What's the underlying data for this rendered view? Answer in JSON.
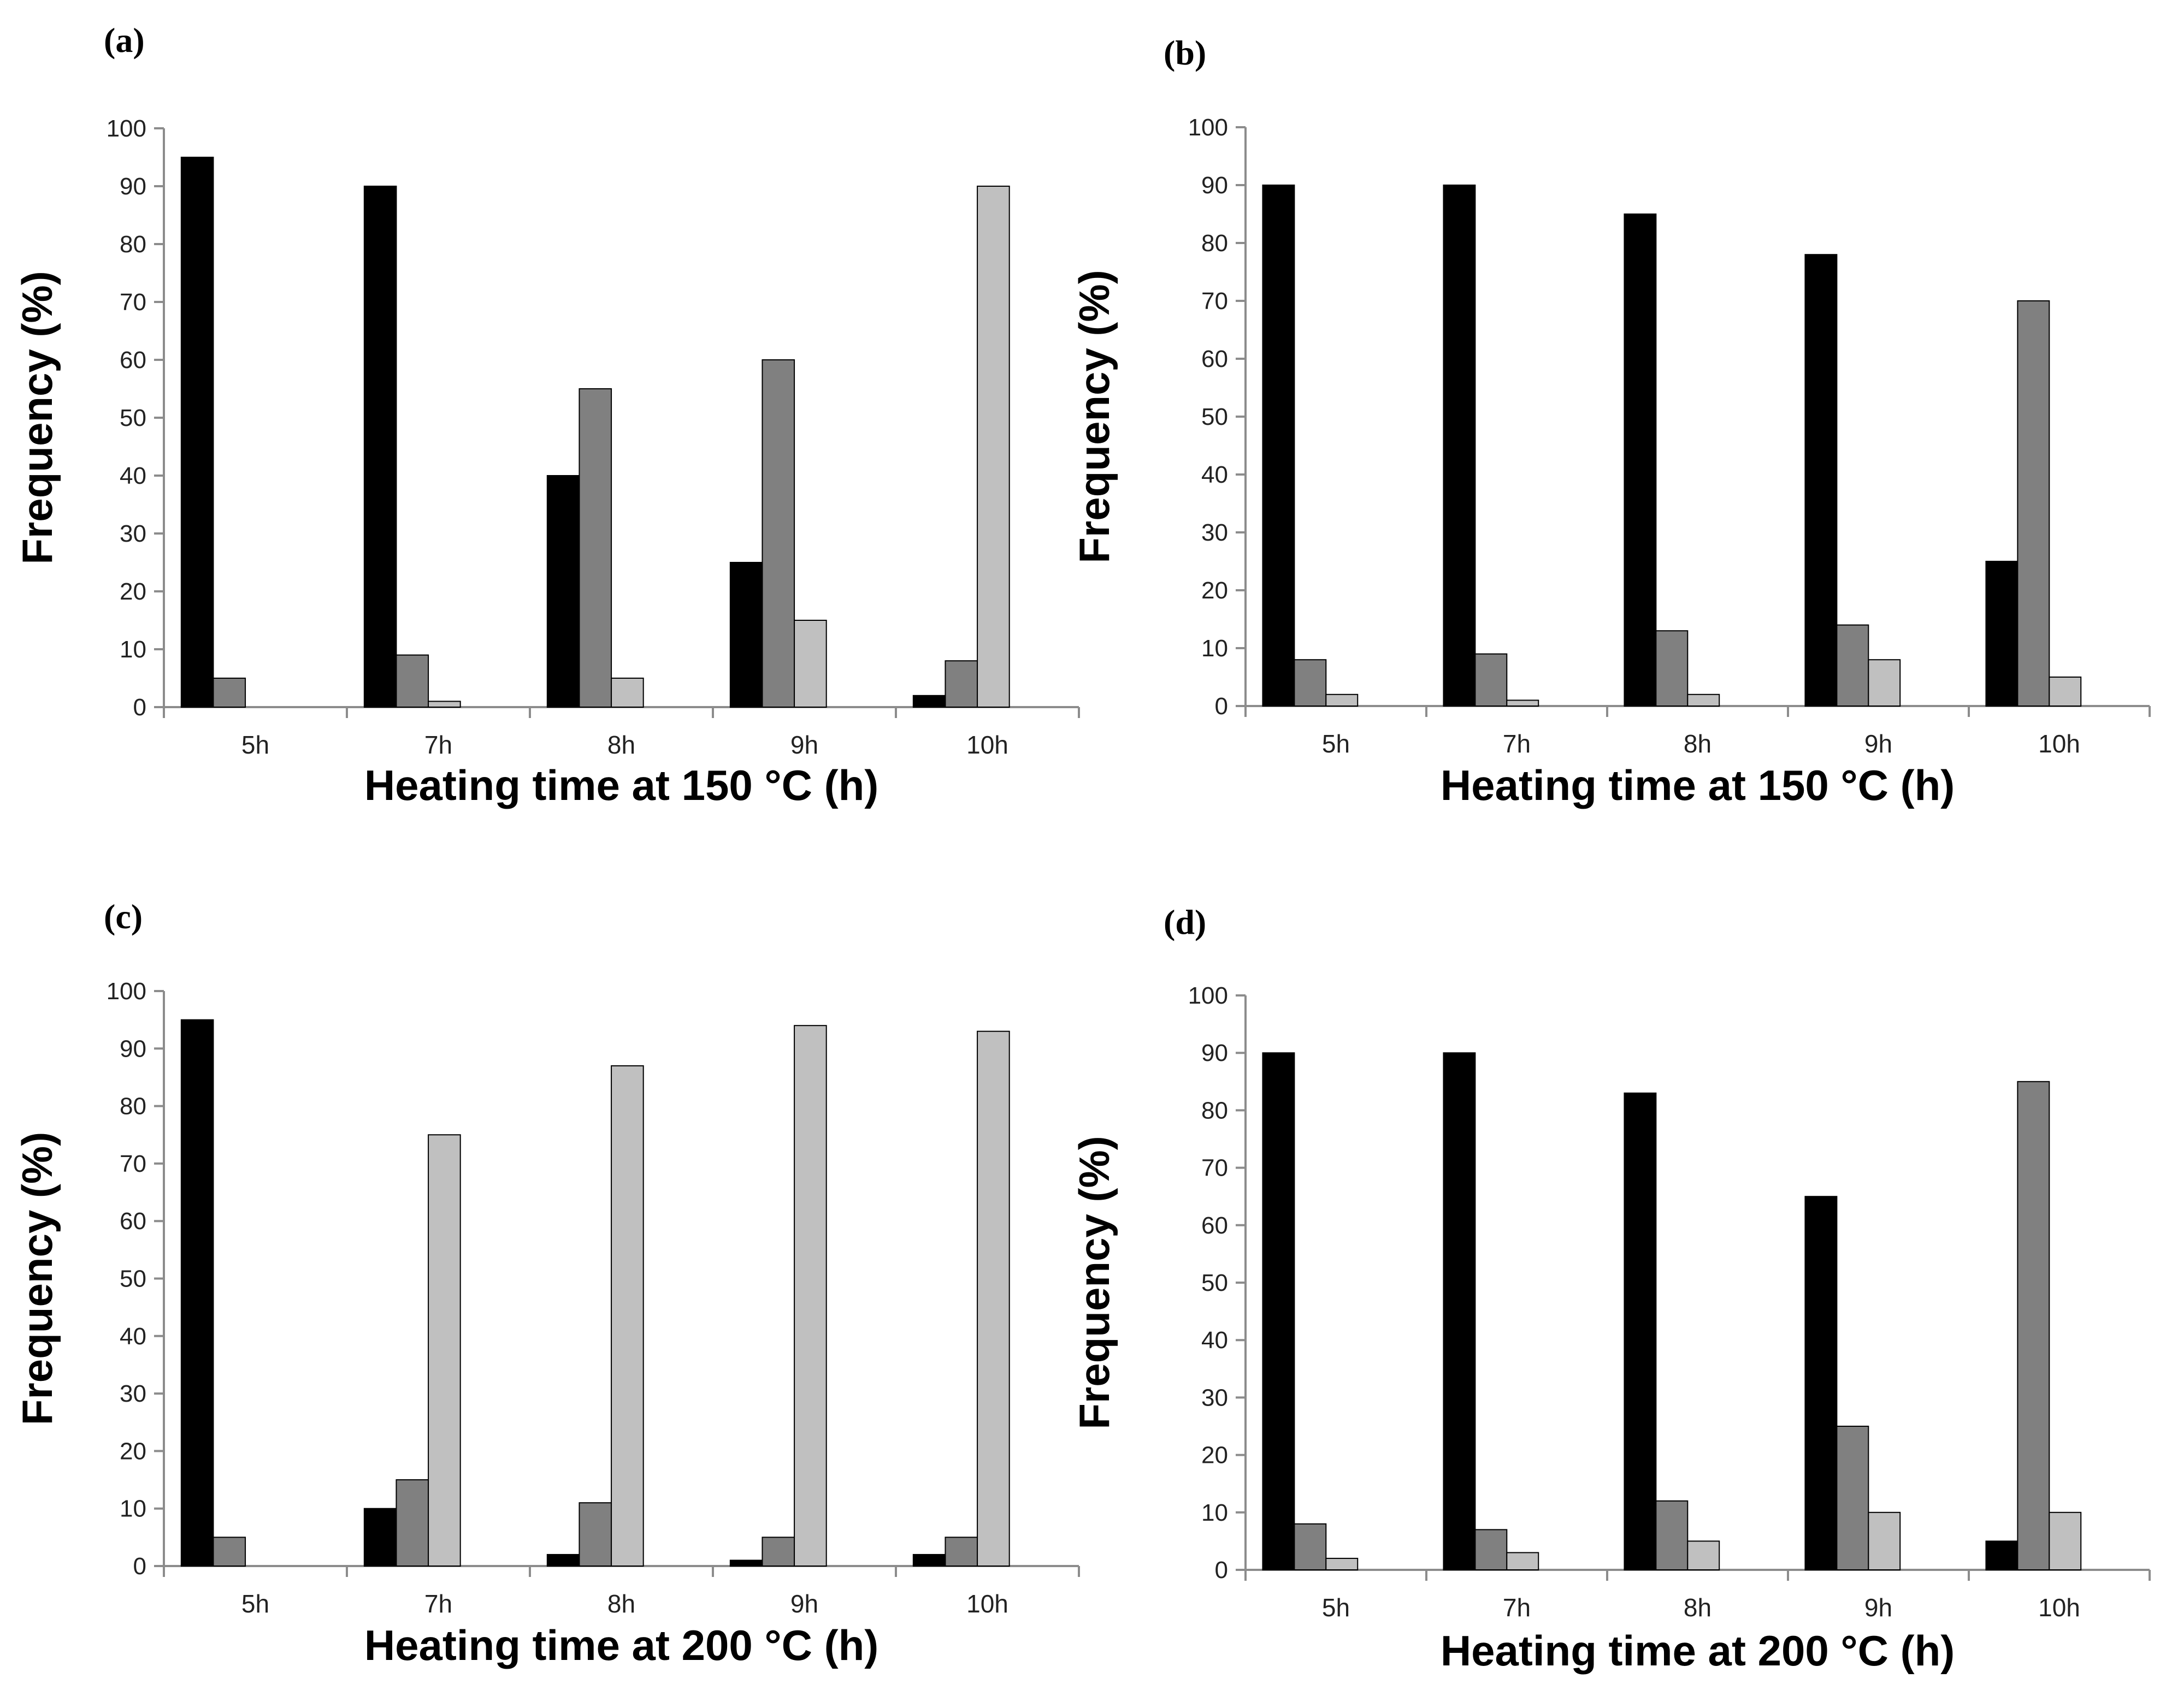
{
  "chart_data": [
    {
      "panel": "(a)",
      "type": "bar",
      "categories": [
        "5h",
        "7h",
        "8h",
        "9h",
        "10h"
      ],
      "series": [
        {
          "name": "series-1",
          "color": "#000000",
          "values": [
            95,
            90,
            40,
            25,
            2
          ]
        },
        {
          "name": "series-2",
          "color": "#808080",
          "values": [
            5,
            9,
            55,
            60,
            8
          ]
        },
        {
          "name": "series-3",
          "color": "#c0c0c0",
          "values": [
            0,
            1,
            5,
            15,
            90
          ]
        }
      ],
      "xlabel": "Heating time at 150 °C (h)",
      "ylabel": "Frequency (%)",
      "ylim": [
        0,
        100
      ],
      "yticks": [
        0,
        10,
        20,
        30,
        40,
        50,
        60,
        70,
        80,
        90,
        100
      ],
      "grid": false,
      "legend": "none"
    },
    {
      "panel": "(b)",
      "type": "bar",
      "categories": [
        "5h",
        "7h",
        "8h",
        "9h",
        "10h"
      ],
      "series": [
        {
          "name": "series-1",
          "color": "#000000",
          "values": [
            90,
            90,
            85,
            78,
            25
          ]
        },
        {
          "name": "series-2",
          "color": "#808080",
          "values": [
            8,
            9,
            13,
            14,
            70
          ]
        },
        {
          "name": "series-3",
          "color": "#c0c0c0",
          "values": [
            2,
            1,
            2,
            8,
            5
          ]
        }
      ],
      "xlabel": "Heating time at 150 °C (h)",
      "ylabel": "Frequency (%)",
      "ylim": [
        0,
        100
      ],
      "yticks": [
        0,
        10,
        20,
        30,
        40,
        50,
        60,
        70,
        80,
        90,
        100
      ],
      "grid": false,
      "legend": "none"
    },
    {
      "panel": "(c)",
      "type": "bar",
      "categories": [
        "5h",
        "7h",
        "8h",
        "9h",
        "10h"
      ],
      "series": [
        {
          "name": "series-1",
          "color": "#000000",
          "values": [
            95,
            10,
            2,
            1,
            2
          ]
        },
        {
          "name": "series-2",
          "color": "#808080",
          "values": [
            5,
            15,
            11,
            5,
            5
          ]
        },
        {
          "name": "series-3",
          "color": "#c0c0c0",
          "values": [
            0,
            75,
            87,
            94,
            93
          ]
        }
      ],
      "xlabel": "Heating time at 200 °C (h)",
      "ylabel": "Frequency (%)",
      "ylim": [
        0,
        100
      ],
      "yticks": [
        0,
        10,
        20,
        30,
        40,
        50,
        60,
        70,
        80,
        90,
        100
      ],
      "grid": false,
      "legend": "none"
    },
    {
      "panel": "(d)",
      "type": "bar",
      "categories": [
        "5h",
        "7h",
        "8h",
        "9h",
        "10h"
      ],
      "series": [
        {
          "name": "series-1",
          "color": "#000000",
          "values": [
            90,
            90,
            83,
            65,
            5
          ]
        },
        {
          "name": "series-2",
          "color": "#808080",
          "values": [
            8,
            7,
            12,
            25,
            85
          ]
        },
        {
          "name": "series-3",
          "color": "#c0c0c0",
          "values": [
            2,
            3,
            5,
            10,
            10
          ]
        }
      ],
      "xlabel": "Heating time at 200 °C (h)",
      "ylabel": "Frequency (%)",
      "ylim": [
        0,
        100
      ],
      "yticks": [
        0,
        10,
        20,
        30,
        40,
        50,
        60,
        70,
        80,
        90,
        100
      ],
      "grid": false,
      "legend": "none"
    }
  ]
}
